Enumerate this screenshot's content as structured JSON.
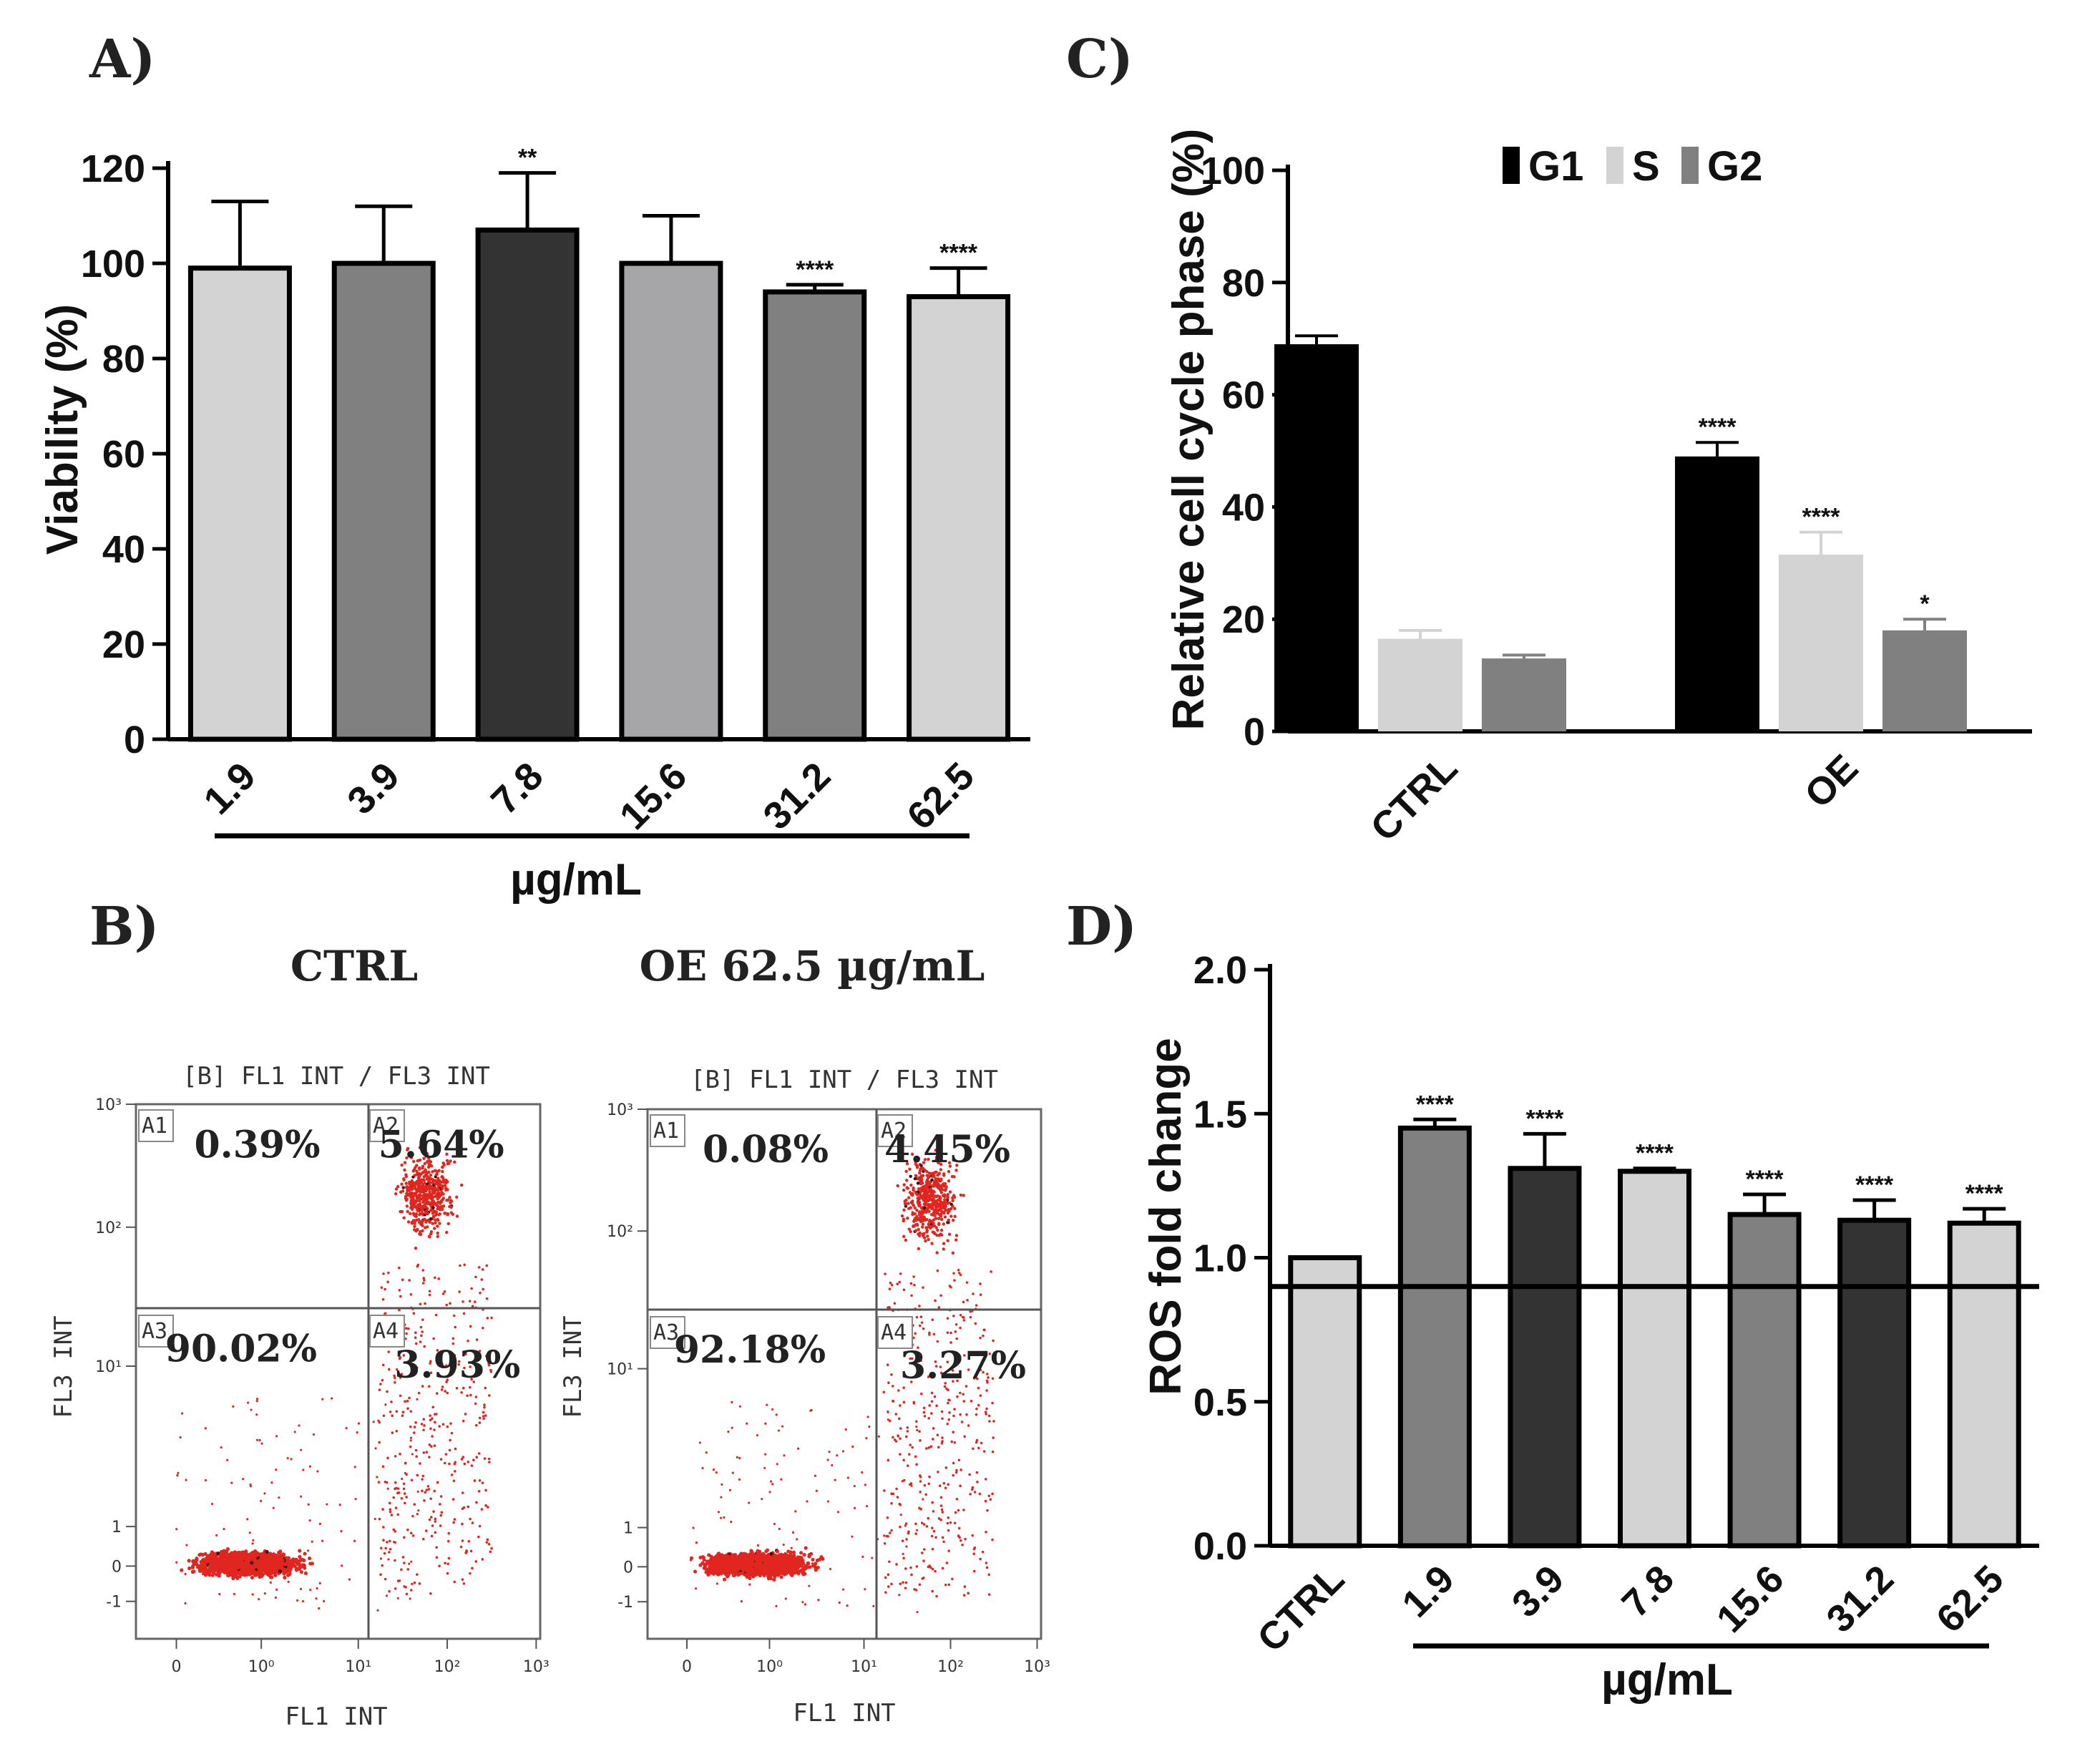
{
  "panel_labels": {
    "a": "A)",
    "b": "B)",
    "c": "C)",
    "d": "D)"
  },
  "colors": {
    "black": "#000000",
    "dark": "#333333",
    "mid": "#808080",
    "mid2": "#a6a6a8",
    "light": "#d3d3d3",
    "dot": "#e0261f"
  },
  "chart_data": [
    {
      "id": "A",
      "type": "bar",
      "ylabel": "Viability (%)",
      "xlabel": "µg/mL",
      "ylim": [
        0,
        120
      ],
      "yticks": [
        "0",
        "20",
        "40",
        "60",
        "80",
        "100",
        "120"
      ],
      "categories": [
        "1.9",
        "3.9",
        "7.8",
        "15.6",
        "31.2",
        "62.5"
      ],
      "values": [
        99,
        100,
        107,
        100,
        94,
        93
      ],
      "errors": [
        14,
        12,
        12,
        10,
        1.5,
        6
      ],
      "significance": [
        "",
        "",
        "**",
        "",
        "****",
        "****"
      ],
      "bar_colors": [
        "light",
        "mid",
        "dark",
        "mid2",
        "mid",
        "light"
      ]
    },
    {
      "id": "C",
      "type": "bar",
      "ylabel": "Relative cell cycle phase (%)",
      "ylim": [
        0,
        100
      ],
      "yticks": [
        "0",
        "20",
        "40",
        "60",
        "80",
        "100"
      ],
      "categories": [
        "CTRL",
        "OE"
      ],
      "legend": [
        "G1",
        "S",
        "G2"
      ],
      "series": [
        {
          "name": "G1",
          "values": [
            69,
            49
          ],
          "errors": [
            1.5,
            2.5
          ],
          "significance": [
            "",
            "****"
          ]
        },
        {
          "name": "S",
          "values": [
            16.5,
            31.5
          ],
          "errors": [
            1.5,
            4
          ],
          "significance": [
            "",
            "****"
          ]
        },
        {
          "name": "G2",
          "values": [
            13,
            18
          ],
          "errors": [
            0.6,
            2
          ],
          "significance": [
            "",
            "*"
          ]
        }
      ]
    },
    {
      "id": "D",
      "type": "bar",
      "ylabel": "ROS fold change",
      "xlabel": "µg/mL",
      "ylim": [
        0,
        2.0
      ],
      "yticks": [
        "0.0",
        "0.5",
        "1.0",
        "1.5",
        "2.0"
      ],
      "categories": [
        "CTRL",
        "1.9",
        "3.9",
        "7.8",
        "15.6",
        "31.2",
        "62.5"
      ],
      "values": [
        1.0,
        1.45,
        1.31,
        1.3,
        1.15,
        1.13,
        1.12
      ],
      "errors": [
        0,
        0.03,
        0.12,
        0.01,
        0.07,
        0.07,
        0.05
      ],
      "significance": [
        "",
        "****",
        "****",
        "****",
        "****",
        "****",
        "****"
      ],
      "bar_colors": [
        "light",
        "mid",
        "dark",
        "light",
        "mid",
        "dark",
        "light"
      ],
      "reference_line": 0.9
    }
  ],
  "flow": {
    "ctrl": {
      "heading": "CTRL",
      "plot_title": "[B] FL1 INT / FL3 INT",
      "xlabel": "FL1 INT",
      "ylabel": "FL3 INT",
      "quadrants": {
        "A1": "0.39%",
        "A2": "5.64%",
        "A3": "90.02%",
        "A4": "3.93%"
      }
    },
    "oe": {
      "heading": "OE 62.5 µg/mL",
      "plot_title": "[B] FL1 INT / FL3 INT",
      "xlabel": "FL1 INT",
      "ylabel": "FL3 INT",
      "quadrants": {
        "A1": "0.08%",
        "A2": "4.45%",
        "A3": "92.18%",
        "A4": "3.27%"
      }
    },
    "quadrant_names": [
      "A1",
      "A2",
      "A3",
      "A4"
    ],
    "xticks": [
      "0",
      "10⁰",
      "10¹",
      "10²",
      "10³"
    ],
    "yticks": [
      "-1",
      "0",
      "1",
      "10¹",
      "10²",
      "10³"
    ]
  }
}
